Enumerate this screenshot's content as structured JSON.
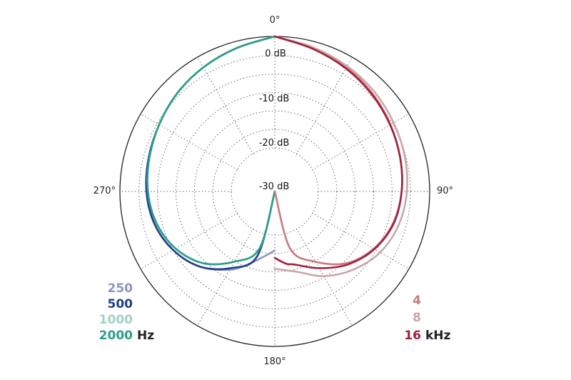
{
  "chart_data": {
    "type": "polar",
    "radial_axis": {
      "ticks": [
        0,
        -10,
        -20,
        -30
      ],
      "tick_labels": [
        "0 dB",
        "-10 dB",
        "-20 dB",
        "-30 dB"
      ],
      "range": [
        -30,
        0
      ]
    },
    "angle_labels": [
      "0°",
      "90°",
      "180°",
      "270°"
    ],
    "grid": true,
    "legend_left": {
      "unit": "Hz",
      "entries": [
        {
          "label": "250",
          "color": "#8d95c6"
        },
        {
          "label": "500",
          "color": "#233f8a"
        },
        {
          "label": "1000",
          "color": "#9fd3c3"
        },
        {
          "label": "2000",
          "color": "#2a9d8a"
        }
      ]
    },
    "legend_right": {
      "unit": "kHz",
      "entries": [
        {
          "label": "4",
          "color": "#c97a7a"
        },
        {
          "label": "8",
          "color": "#c9a7a7"
        },
        {
          "label": "16",
          "color": "#a0203a"
        }
      ]
    },
    "series": [
      {
        "name": "250",
        "color": "#8d95c6",
        "side": "left",
        "points": [
          [
            0,
            0
          ],
          [
            15,
            -1.8
          ],
          [
            30,
            -3.2
          ],
          [
            45,
            -4.5
          ],
          [
            60,
            -5.8
          ],
          [
            75,
            -6.6
          ],
          [
            90,
            -7.2
          ],
          [
            105,
            -8.2
          ],
          [
            120,
            -10.2
          ],
          [
            135,
            -13.2
          ],
          [
            150,
            -17.5
          ],
          [
            160,
            -21
          ],
          [
            170,
            -24
          ],
          [
            180,
            -26
          ]
        ]
      },
      {
        "name": "500",
        "color": "#233f8a",
        "side": "left",
        "points": [
          [
            0,
            0
          ],
          [
            15,
            -1.8
          ],
          [
            30,
            -3.2
          ],
          [
            45,
            -4.5
          ],
          [
            60,
            -5.8
          ],
          [
            75,
            -6.6
          ],
          [
            90,
            -7.2
          ],
          [
            105,
            -8.2
          ],
          [
            120,
            -10.2
          ],
          [
            135,
            -13.2
          ],
          [
            150,
            -18
          ],
          [
            165,
            -24
          ],
          [
            180,
            -30
          ]
        ]
      },
      {
        "name": "1000",
        "color": "#9fd3c3",
        "side": "left",
        "points": [
          [
            0,
            0
          ],
          [
            15,
            -1.8
          ],
          [
            30,
            -3.2
          ],
          [
            45,
            -4.5
          ],
          [
            60,
            -5.8
          ],
          [
            75,
            -6.8
          ],
          [
            90,
            -7.6
          ],
          [
            105,
            -8.8
          ],
          [
            120,
            -11
          ],
          [
            135,
            -14.5
          ],
          [
            150,
            -20
          ],
          [
            165,
            -26
          ],
          [
            180,
            -30
          ]
        ]
      },
      {
        "name": "2000",
        "color": "#2a9d8a",
        "side": "left",
        "points": [
          [
            0,
            0
          ],
          [
            15,
            -1.8
          ],
          [
            30,
            -3.2
          ],
          [
            45,
            -4.5
          ],
          [
            60,
            -5.8
          ],
          [
            75,
            -6.8
          ],
          [
            90,
            -7.6
          ],
          [
            105,
            -8.8
          ],
          [
            120,
            -11
          ],
          [
            135,
            -14.5
          ],
          [
            150,
            -20
          ],
          [
            165,
            -26
          ],
          [
            180,
            -30
          ]
        ]
      },
      {
        "name": "4",
        "color": "#c97a7a",
        "side": "right",
        "points": [
          [
            0,
            0
          ],
          [
            15,
            -1.8
          ],
          [
            30,
            -3.2
          ],
          [
            45,
            -4.5
          ],
          [
            60,
            -5.8
          ],
          [
            75,
            -6.8
          ],
          [
            90,
            -7.6
          ],
          [
            105,
            -8.8
          ],
          [
            120,
            -11
          ],
          [
            135,
            -14.5
          ],
          [
            150,
            -20
          ],
          [
            165,
            -26
          ],
          [
            180,
            -30
          ]
        ]
      },
      {
        "name": "8",
        "color": "#c9a7a7",
        "side": "right",
        "points": [
          [
            0,
            0
          ],
          [
            15,
            -1.6
          ],
          [
            30,
            -2.8
          ],
          [
            45,
            -3.8
          ],
          [
            60,
            -4.8
          ],
          [
            75,
            -5.5
          ],
          [
            90,
            -6.2
          ],
          [
            105,
            -7.2
          ],
          [
            120,
            -9.0
          ],
          [
            135,
            -12.0
          ],
          [
            150,
            -15.5
          ],
          [
            165,
            -19.5
          ],
          [
            180,
            -21
          ]
        ]
      },
      {
        "name": "16",
        "color": "#a0203a",
        "side": "right",
        "points": [
          [
            0,
            0
          ],
          [
            15,
            -2.0
          ],
          [
            30,
            -3.5
          ],
          [
            45,
            -4.8
          ],
          [
            60,
            -5.9
          ],
          [
            75,
            -6.8
          ],
          [
            90,
            -7.6
          ],
          [
            105,
            -8.6
          ],
          [
            120,
            -10.8
          ],
          [
            135,
            -14
          ],
          [
            150,
            -18
          ],
          [
            165,
            -21.5
          ],
          [
            170,
            -22
          ],
          [
            175,
            -23
          ],
          [
            180,
            -24
          ]
        ]
      }
    ]
  }
}
